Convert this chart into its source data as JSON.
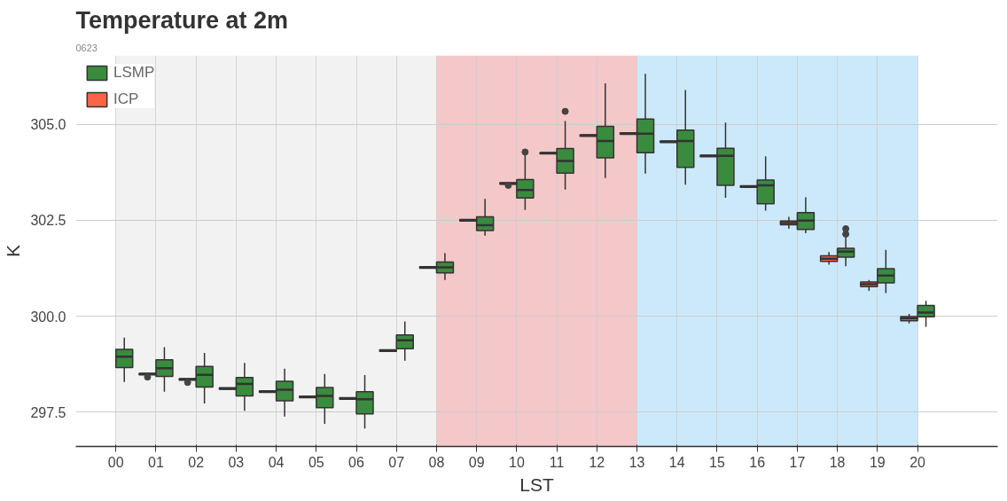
{
  "chart_data": {
    "type": "box",
    "title": "Temperature at 2m",
    "subtitle": "0623",
    "xlabel": "LST",
    "ylabel": "K",
    "categories": [
      "00",
      "01",
      "02",
      "03",
      "04",
      "05",
      "06",
      "07",
      "08",
      "09",
      "10",
      "11",
      "12",
      "13",
      "14",
      "15",
      "16",
      "17",
      "18",
      "19",
      "20"
    ],
    "ylim": [
      296.6,
      306.8
    ],
    "yticks": [
      297.5,
      {
        "value": 300,
        "label": "300.0"
      },
      302.5,
      {
        "value": 305,
        "label": "305.0"
      }
    ],
    "grid": true,
    "legend": "top left",
    "bands": [
      {
        "axis": "x",
        "from": "00",
        "to": "08",
        "color": "#f2f2f2"
      },
      {
        "axis": "x",
        "from": "08",
        "to": "13",
        "color": "#f4c7c9"
      },
      {
        "axis": "x",
        "from": "13",
        "to": "20",
        "color": "#cce9fb"
      }
    ],
    "series": [
      {
        "name": "LSMP",
        "color": "#3a8b3e",
        "boxes": [
          {
            "low": 298.28,
            "q1": 298.66,
            "median": 298.94,
            "q3": 299.13,
            "high": 299.44
          },
          {
            "low": 298.03,
            "q1": 298.43,
            "median": 298.64,
            "q3": 298.86,
            "high": 299.19
          },
          {
            "low": 297.72,
            "q1": 298.15,
            "median": 298.47,
            "q3": 298.69,
            "high": 299.04
          },
          {
            "low": 297.53,
            "q1": 297.92,
            "median": 298.23,
            "q3": 298.4,
            "high": 298.78
          },
          {
            "low": 297.38,
            "q1": 297.79,
            "median": 298.08,
            "q3": 298.3,
            "high": 298.63
          },
          {
            "low": 297.19,
            "q1": 297.61,
            "median": 297.92,
            "q3": 298.14,
            "high": 298.49
          },
          {
            "low": 297.07,
            "q1": 297.45,
            "median": 297.83,
            "q3": 298.03,
            "high": 298.46
          },
          {
            "low": 298.84,
            "q1": 299.15,
            "median": 299.37,
            "q3": 299.51,
            "high": 299.86
          },
          {
            "low": 300.94,
            "q1": 301.13,
            "median": 301.27,
            "q3": 301.41,
            "high": 301.64
          },
          {
            "low": 302.1,
            "q1": 302.23,
            "median": 302.37,
            "q3": 302.59,
            "high": 303.06
          },
          {
            "low": 302.77,
            "q1": 303.08,
            "median": 303.29,
            "q3": 303.56,
            "high": 304.2,
            "outliers": [
              304.28
            ]
          },
          {
            "low": 303.3,
            "q1": 303.73,
            "median": 304.05,
            "q3": 304.37,
            "high": 305.09,
            "outliers": [
              305.34
            ]
          },
          {
            "low": 303.6,
            "q1": 304.13,
            "median": 304.57,
            "q3": 304.95,
            "high": 306.07
          },
          {
            "low": 303.72,
            "q1": 304.26,
            "median": 304.76,
            "q3": 305.14,
            "high": 306.32
          },
          {
            "low": 303.43,
            "q1": 303.88,
            "median": 304.57,
            "q3": 304.85,
            "high": 305.9
          },
          {
            "low": 303.09,
            "q1": 303.41,
            "median": 304.18,
            "q3": 304.38,
            "high": 305.05
          },
          {
            "low": 302.75,
            "q1": 302.93,
            "median": 303.41,
            "q3": 303.55,
            "high": 304.17
          },
          {
            "low": 302.16,
            "q1": 302.26,
            "median": 302.49,
            "q3": 302.7,
            "high": 303.1
          },
          {
            "low": 301.3,
            "q1": 301.54,
            "median": 301.68,
            "q3": 301.77,
            "high": 302.06,
            "outliers": [
              302.14,
              302.28
            ]
          },
          {
            "low": 300.6,
            "q1": 300.87,
            "median": 301.06,
            "q3": 301.24,
            "high": 301.73
          },
          {
            "low": 299.72,
            "q1": 299.98,
            "median": 300.09,
            "q3": 300.28,
            "high": 300.4
          }
        ]
      },
      {
        "name": "ICP",
        "color": "#ff6347",
        "boxes": [
          null,
          {
            "low": 298.47,
            "q1": 298.47,
            "median": 298.49,
            "q3": 298.51,
            "high": 298.51,
            "outliers": [
              298.41
            ]
          },
          {
            "low": 298.33,
            "q1": 298.33,
            "median": 298.35,
            "q3": 298.37,
            "high": 298.37,
            "outliers": [
              298.27
            ]
          },
          {
            "low": 298.09,
            "q1": 298.09,
            "median": 298.11,
            "q3": 298.13,
            "high": 298.13
          },
          {
            "low": 298.01,
            "q1": 298.01,
            "median": 298.03,
            "q3": 298.05,
            "high": 298.05
          },
          {
            "low": 297.87,
            "q1": 297.87,
            "median": 297.89,
            "q3": 297.91,
            "high": 297.91
          },
          {
            "low": 297.83,
            "q1": 297.83,
            "median": 297.85,
            "q3": 297.87,
            "high": 297.87
          },
          {
            "low": 299.08,
            "q1": 299.08,
            "median": 299.1,
            "q3": 299.12,
            "high": 299.12
          },
          {
            "low": 301.25,
            "q1": 301.25,
            "median": 301.27,
            "q3": 301.29,
            "high": 301.29
          },
          {
            "low": 302.48,
            "q1": 302.48,
            "median": 302.5,
            "q3": 302.52,
            "high": 302.52
          },
          {
            "low": 303.44,
            "q1": 303.44,
            "median": 303.46,
            "q3": 303.48,
            "high": 303.48,
            "outliers": [
              303.41
            ]
          },
          {
            "low": 304.23,
            "q1": 304.23,
            "median": 304.25,
            "q3": 304.27,
            "high": 304.27
          },
          {
            "low": 304.69,
            "q1": 304.69,
            "median": 304.71,
            "q3": 304.73,
            "high": 304.73
          },
          {
            "low": 304.74,
            "q1": 304.74,
            "median": 304.76,
            "q3": 304.78,
            "high": 304.78
          },
          {
            "low": 304.53,
            "q1": 304.53,
            "median": 304.55,
            "q3": 304.57,
            "high": 304.57
          },
          {
            "low": 304.16,
            "q1": 304.16,
            "median": 304.18,
            "q3": 304.2,
            "high": 304.2
          },
          {
            "low": 303.36,
            "q1": 303.36,
            "median": 303.38,
            "q3": 303.4,
            "high": 303.4
          },
          {
            "low": 302.28,
            "q1": 302.38,
            "median": 302.43,
            "q3": 302.48,
            "high": 302.59
          },
          {
            "low": 301.34,
            "q1": 301.43,
            "median": 301.5,
            "q3": 301.57,
            "high": 301.67
          },
          {
            "low": 300.66,
            "q1": 300.77,
            "median": 300.83,
            "q3": 300.89,
            "high": 300.94
          },
          {
            "low": 299.81,
            "q1": 299.88,
            "median": 299.94,
            "q3": 299.99,
            "high": 300.06
          }
        ]
      }
    ]
  }
}
